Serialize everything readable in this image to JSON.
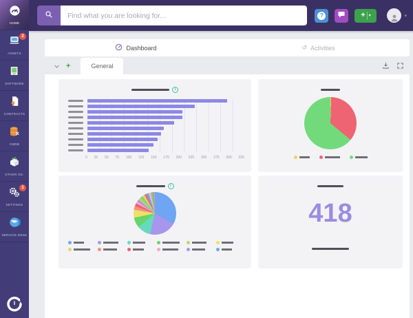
{
  "colors": {
    "sidebar_bg": "#423d78",
    "topbar_bg": "#3a3063",
    "search_button": "#7b60b2",
    "help_button": "#4a90d2",
    "messages_button": "#a14cc0",
    "add_button": "#3da14d",
    "badge_red": "#e8564a",
    "activities_icon": "#e09050",
    "bar_color": "#8d87e6",
    "big_number_color": "#9b8ce0",
    "card_bg": "#f3f3f6",
    "page_bg": "#e9ebef"
  },
  "sidebar": {
    "items": [
      {
        "label": "HOME",
        "active": true
      },
      {
        "label": "ASSETS",
        "badge": "2"
      },
      {
        "label": "SOFTWARE"
      },
      {
        "label": "CONTRACTS"
      },
      {
        "label": "CMDB"
      },
      {
        "label": "OTHER OS."
      },
      {
        "label": "SETTINGS",
        "badge": "1"
      },
      {
        "label": "SERVICE DESK"
      }
    ]
  },
  "topbar": {
    "search_placeholder": "Find what you are looking for...",
    "help_glyph": "?",
    "add_label": "+",
    "add_caret": "▾",
    "user_caret": "▾"
  },
  "breadcrumb": {
    "dashboard": "Dashboard",
    "activities": "Activities",
    "activities_glyph": "↺"
  },
  "tabbar": {
    "add": "+",
    "tab_general": "General"
  },
  "chart_data": [
    {
      "type": "bar",
      "orientation": "horizontal",
      "title": "",
      "labels_redacted": true,
      "categories": [
        "",
        "",
        "",
        "",
        "",
        "",
        "",
        "",
        "",
        ""
      ],
      "values": [
        290,
        222,
        197,
        196,
        180,
        158,
        153,
        145,
        137,
        127
      ],
      "xlabel": "",
      "ylabel": "",
      "xlim": [
        0,
        325
      ],
      "xticks": [
        0,
        25,
        50,
        75,
        100,
        125,
        150,
        175,
        200,
        225,
        250,
        275,
        300,
        325
      ],
      "grid": true,
      "bar_color": "#8d87e6"
    },
    {
      "type": "pie",
      "title": "",
      "labels_redacted": true,
      "legend_position": "bottom",
      "slices": [
        {
          "label": "",
          "color": "#f0cf65",
          "value": 0.5
        },
        {
          "label": "",
          "color": "#ef6472",
          "value": 35.5
        },
        {
          "label": "",
          "color": "#73da7c",
          "value": 64.0
        }
      ],
      "legend": [
        {
          "label": "",
          "color": "#f0cf65"
        },
        {
          "label": "",
          "color": "#ef6472"
        },
        {
          "label": "",
          "color": "#73da7c"
        }
      ]
    },
    {
      "type": "pie",
      "title": "",
      "labels_redacted": true,
      "legend_position": "bottom",
      "slices": [
        {
          "label": "",
          "color": "#6fa5f2",
          "value": 33.3
        },
        {
          "label": "",
          "color": "#a796ec",
          "value": 20.3
        },
        {
          "label": "",
          "color": "#66d9be",
          "value": 10.3
        },
        {
          "label": "",
          "color": "#66d666",
          "value": 7.8
        },
        {
          "label": "",
          "color": "#efe06a",
          "value": 6.1
        },
        {
          "label": "",
          "color": "#f4907e",
          "value": 2.8
        },
        {
          "label": "",
          "color": "#ee5f6d",
          "value": 2.2
        },
        {
          "label": "",
          "color": "#f4a6cc",
          "value": 1.7
        },
        {
          "label": "",
          "color": "#b292e4",
          "value": 1.7
        },
        {
          "label": "",
          "color": "#bcd66b",
          "value": 1.7
        },
        {
          "label": "",
          "color": "#7ed67e",
          "value": 2.2
        },
        {
          "label": "",
          "color": "#e8d36a",
          "value": 1.7
        },
        {
          "label": "",
          "color": "#e86a78",
          "value": 1.7
        },
        {
          "label": "",
          "color": "#66aaf0",
          "value": 1.7
        },
        {
          "label": "",
          "color": "#f0b6d8",
          "value": 1.7
        },
        {
          "label": "",
          "color": "#6ed66e",
          "value": 1.4
        },
        {
          "label": "",
          "color": "#f08080",
          "value": 1.1
        },
        {
          "label": "",
          "color": "#88b8f0",
          "value": 0.6
        }
      ],
      "legend": [
        {
          "label": "",
          "color": "#6fa5f2"
        },
        {
          "label": "",
          "color": "#a796ec"
        },
        {
          "label": "",
          "color": "#66d9be"
        },
        {
          "label": "",
          "color": "#66d666"
        },
        {
          "label": "",
          "color": "#bcd66b"
        },
        {
          "label": "",
          "color": "#efe06a"
        },
        {
          "label": "",
          "color": "#e8d36a"
        },
        {
          "label": "",
          "color": "#f4907e"
        },
        {
          "label": "",
          "color": "#ee5f6d"
        },
        {
          "label": "",
          "color": "#f4a6cc"
        },
        {
          "label": "",
          "color": "#b292e4"
        },
        {
          "label": "",
          "color": "#66aaf0"
        }
      ]
    },
    {
      "type": "number",
      "title": "",
      "labels_redacted": true,
      "value": "418",
      "color": "#9b8ce0"
    }
  ]
}
